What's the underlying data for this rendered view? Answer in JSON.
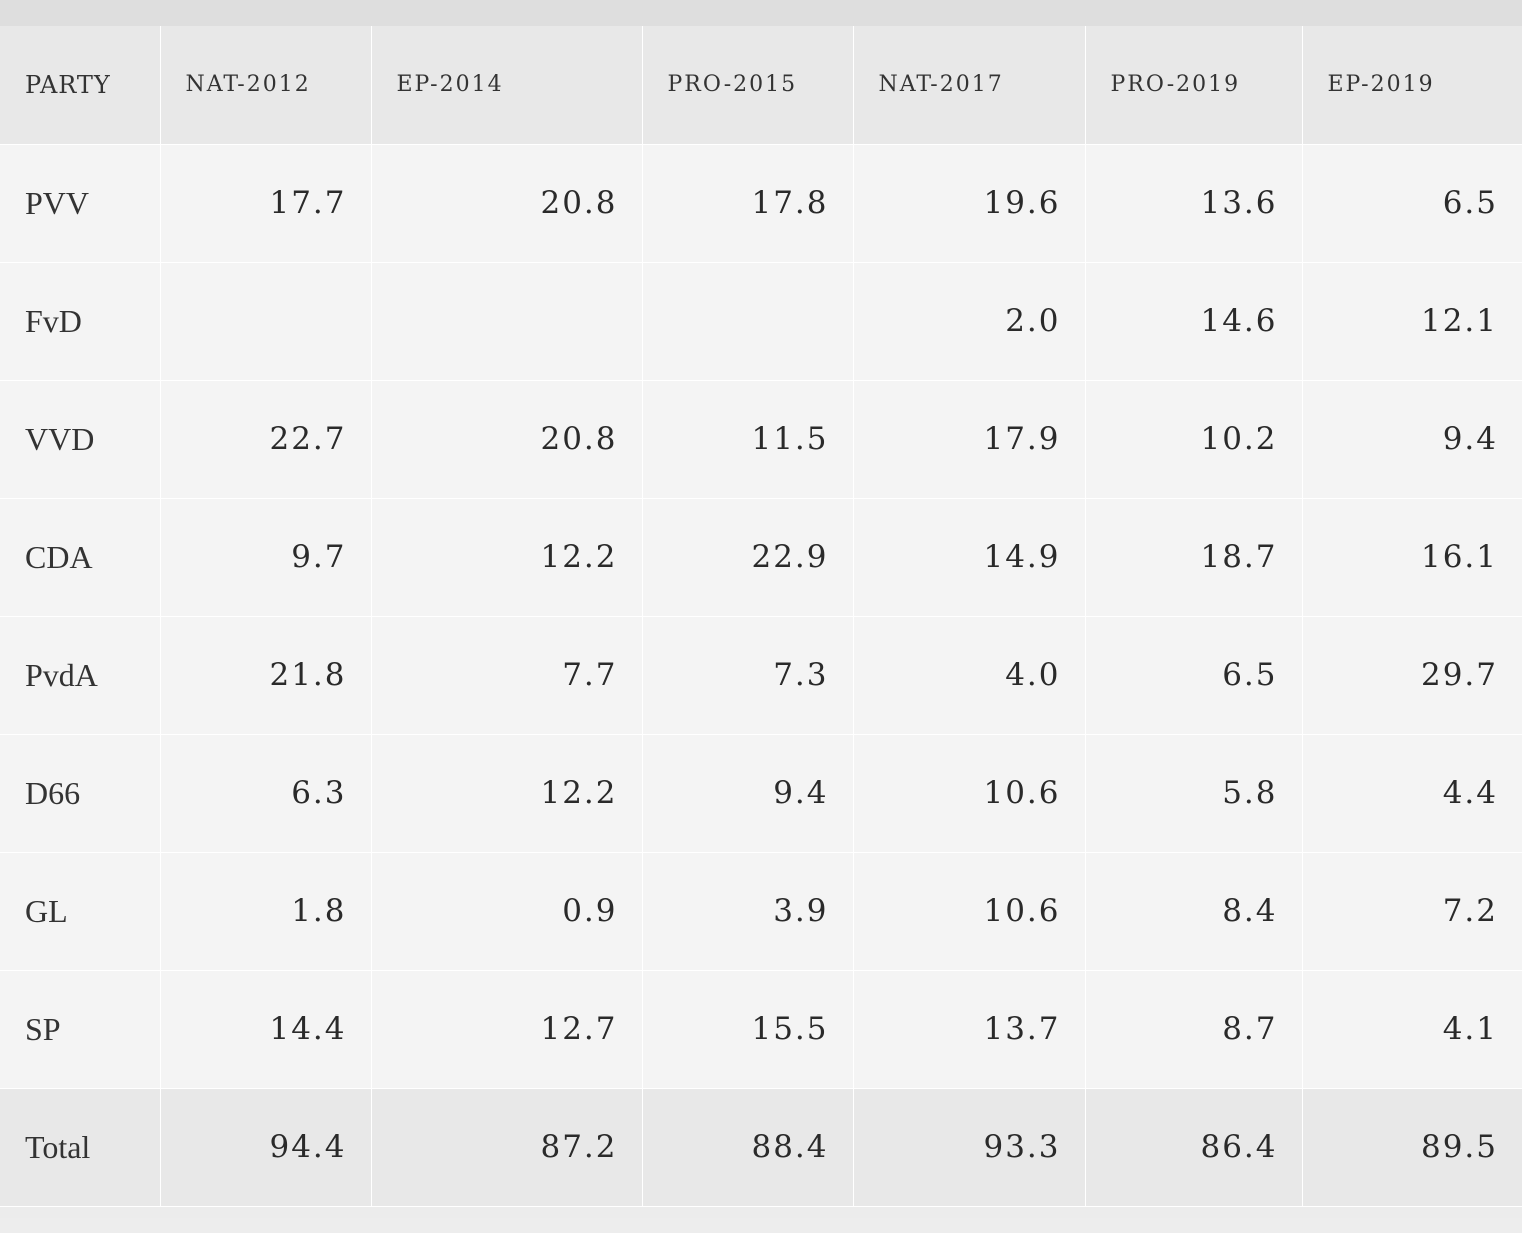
{
  "table": {
    "headers": [
      "PARTY",
      "NAT-2012",
      "EP-2014",
      "PRO-2015",
      "NAT-2017",
      "PRO-2019",
      "EP-2019"
    ],
    "rows": [
      {
        "party": "PVV",
        "values": [
          "17.7",
          "20.8",
          "17.8",
          "19.6",
          "13.6",
          "6.5"
        ]
      },
      {
        "party": "FvD",
        "values": [
          "",
          "",
          "",
          "2.0",
          "14.6",
          "12.1"
        ]
      },
      {
        "party": "VVD",
        "values": [
          "22.7",
          "20.8",
          "11.5",
          "17.9",
          "10.2",
          "9.4"
        ]
      },
      {
        "party": "CDA",
        "values": [
          "9.7",
          "12.2",
          "22.9",
          "14.9",
          "18.7",
          "16.1"
        ]
      },
      {
        "party": "PvdA",
        "values": [
          "21.8",
          "7.7",
          "7.3",
          "4.0",
          "6.5",
          "29.7"
        ]
      },
      {
        "party": "D66",
        "values": [
          "6.3",
          "12.2",
          "9.4",
          "10.6",
          "5.8",
          "4.4"
        ]
      },
      {
        "party": "GL",
        "values": [
          "1.8",
          "0.9",
          "3.9",
          "10.6",
          "8.4",
          "7.2"
        ]
      },
      {
        "party": "SP",
        "values": [
          "14.4",
          "12.7",
          "15.5",
          "13.7",
          "8.7",
          "4.1"
        ]
      }
    ],
    "total": {
      "party": "Total",
      "values": [
        "94.4",
        "87.2",
        "88.4",
        "93.3",
        "86.4",
        "89.5"
      ]
    }
  }
}
